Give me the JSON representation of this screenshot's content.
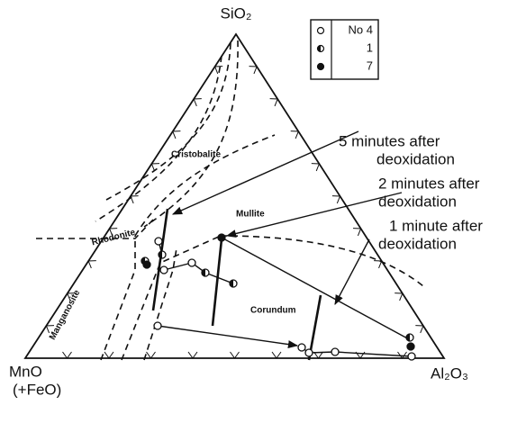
{
  "corners": {
    "apex": "SiO₂",
    "left": "MnO",
    "left_note": "(+FeO)",
    "right": "Al₂O₃"
  },
  "legend": {
    "entries": [
      "No 4",
      "1",
      "7"
    ]
  },
  "annotations": [
    {
      "lines": [
        "5 minutes after",
        "deoxidation"
      ]
    },
    {
      "lines": [
        "2 minutes after",
        "deoxidation"
      ]
    },
    {
      "lines": [
        "1 minute after",
        "deoxidation"
      ]
    }
  ],
  "regions": [
    "Cristobalite",
    "Mullite",
    "Rhodonite",
    "Manganosite",
    "Corundum"
  ]
}
